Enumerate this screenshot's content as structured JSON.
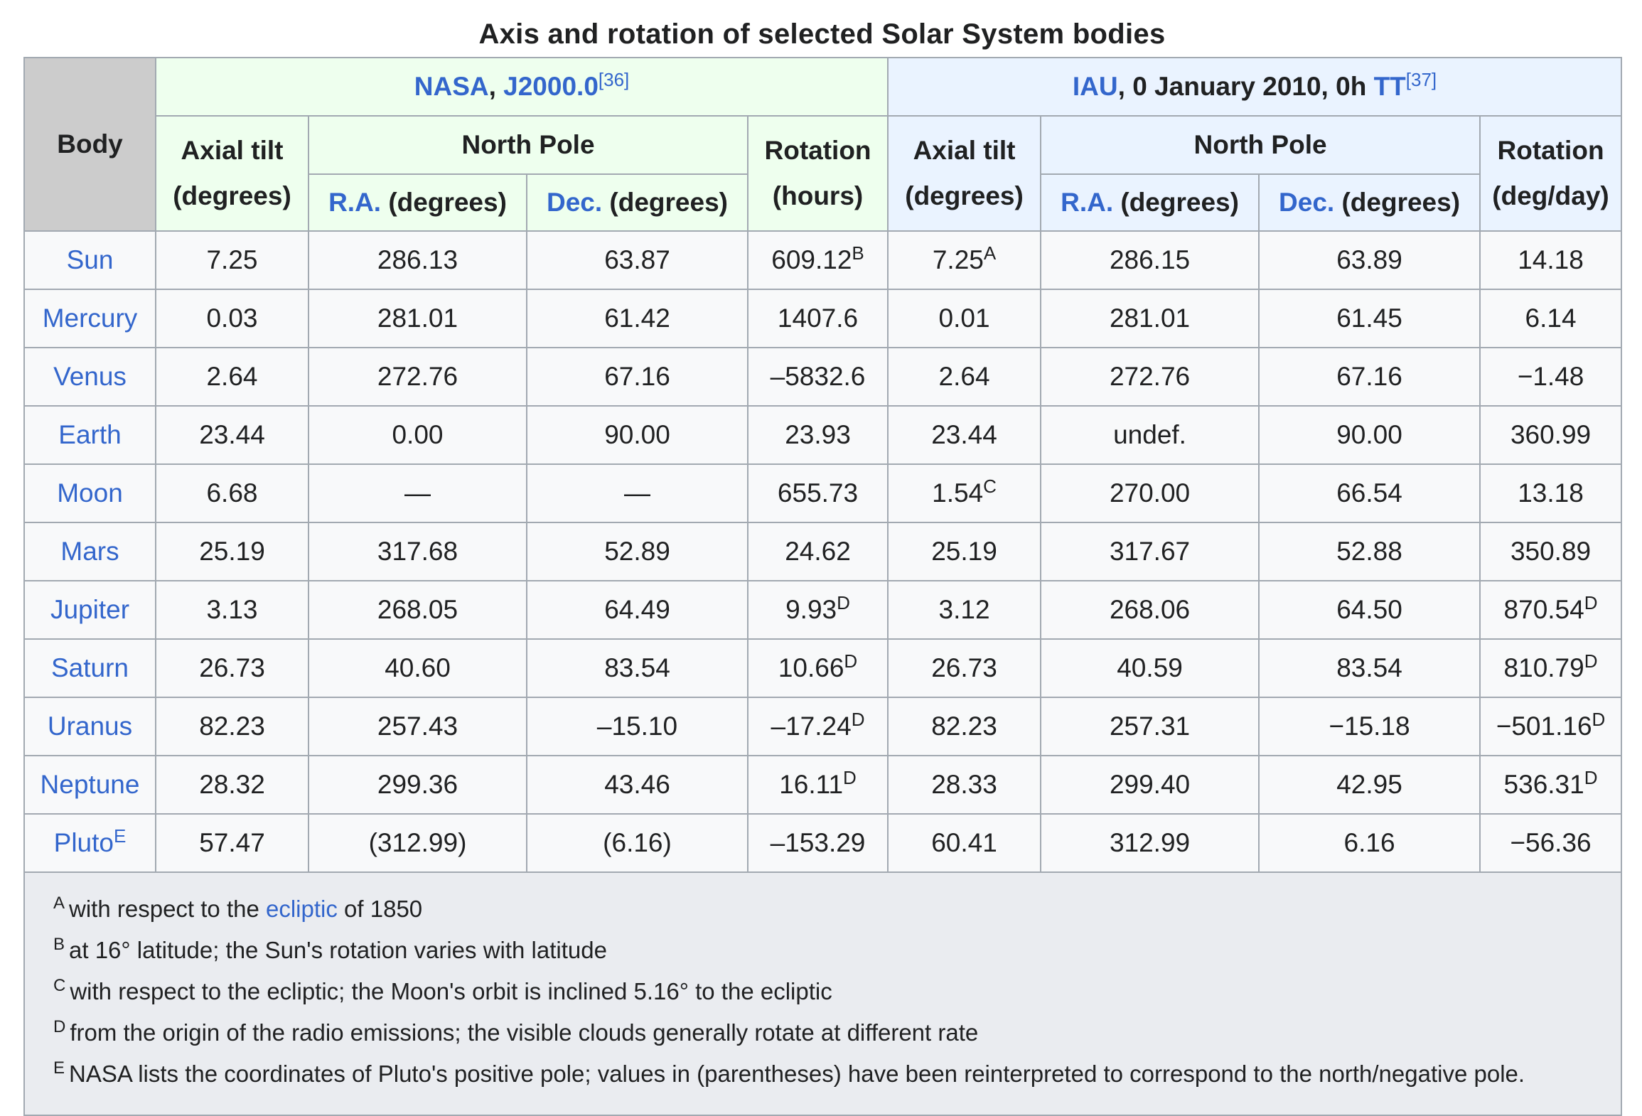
{
  "caption": "Axis and rotation of selected Solar System bodies",
  "header": {
    "body": "Body",
    "nasa_group": {
      "name": "NASA",
      "sep": ", ",
      "epoch": "J2000.0",
      "ref": "[36]"
    },
    "iau_group": {
      "name": "IAU",
      "text": ", 0 January 2010, 0h ",
      "tt": "TT",
      "ref": "[37]"
    },
    "axial_tilt": "Axial tilt",
    "degrees": "(degrees)",
    "north_pole": "North Pole",
    "ra": "R.A.",
    "dec": "Dec.",
    "deg_suffix": " (degrees)",
    "rotation": "Rotation",
    "hours": "(hours)",
    "degday": "(deg/day)"
  },
  "rows": [
    {
      "body": "Sun",
      "body_note": "",
      "nasa_tilt": "7.25",
      "nasa_ra": "286.13",
      "nasa_dec": "63.87",
      "nasa_rot": "609.12",
      "nasa_rot_note": "B",
      "iau_tilt": "7.25",
      "iau_tilt_note": "A",
      "iau_ra": "286.15",
      "iau_dec": "63.89",
      "iau_rot": "14.18",
      "iau_rot_note": ""
    },
    {
      "body": "Mercury",
      "body_note": "",
      "nasa_tilt": "0.03",
      "nasa_ra": "281.01",
      "nasa_dec": "61.42",
      "nasa_rot": "1407.6",
      "nasa_rot_note": "",
      "iau_tilt": "0.01",
      "iau_tilt_note": "",
      "iau_ra": "281.01",
      "iau_dec": "61.45",
      "iau_rot": "6.14",
      "iau_rot_note": ""
    },
    {
      "body": "Venus",
      "body_note": "",
      "nasa_tilt": "2.64",
      "nasa_ra": "272.76",
      "nasa_dec": "67.16",
      "nasa_rot": "–5832.6",
      "nasa_rot_note": "",
      "iau_tilt": "2.64",
      "iau_tilt_note": "",
      "iau_ra": "272.76",
      "iau_dec": "67.16",
      "iau_rot": "−1.48",
      "iau_rot_note": ""
    },
    {
      "body": "Earth",
      "body_note": "",
      "nasa_tilt": "23.44",
      "nasa_ra": "0.00",
      "nasa_dec": "90.00",
      "nasa_rot": "23.93",
      "nasa_rot_note": "",
      "iau_tilt": "23.44",
      "iau_tilt_note": "",
      "iau_ra": "undef.",
      "iau_dec": "90.00",
      "iau_rot": "360.99",
      "iau_rot_note": ""
    },
    {
      "body": "Moon",
      "body_note": "",
      "nasa_tilt": "6.68",
      "nasa_ra": "—",
      "nasa_dec": "—",
      "nasa_rot": "655.73",
      "nasa_rot_note": "",
      "iau_tilt": "1.54",
      "iau_tilt_note": "C",
      "iau_ra": "270.00",
      "iau_dec": "66.54",
      "iau_rot": "13.18",
      "iau_rot_note": ""
    },
    {
      "body": "Mars",
      "body_note": "",
      "nasa_tilt": "25.19",
      "nasa_ra": "317.68",
      "nasa_dec": "52.89",
      "nasa_rot": "24.62",
      "nasa_rot_note": "",
      "iau_tilt": "25.19",
      "iau_tilt_note": "",
      "iau_ra": "317.67",
      "iau_dec": "52.88",
      "iau_rot": "350.89",
      "iau_rot_note": ""
    },
    {
      "body": "Jupiter",
      "body_note": "",
      "nasa_tilt": "3.13",
      "nasa_ra": "268.05",
      "nasa_dec": "64.49",
      "nasa_rot": "9.93",
      "nasa_rot_note": "D",
      "iau_tilt": "3.12",
      "iau_tilt_note": "",
      "iau_ra": "268.06",
      "iau_dec": "64.50",
      "iau_rot": "870.54",
      "iau_rot_note": "D"
    },
    {
      "body": "Saturn",
      "body_note": "",
      "nasa_tilt": "26.73",
      "nasa_ra": "40.60",
      "nasa_dec": "83.54",
      "nasa_rot": "10.66",
      "nasa_rot_note": "D",
      "iau_tilt": "26.73",
      "iau_tilt_note": "",
      "iau_ra": "40.59",
      "iau_dec": "83.54",
      "iau_rot": "810.79",
      "iau_rot_note": "D"
    },
    {
      "body": "Uranus",
      "body_note": "",
      "nasa_tilt": "82.23",
      "nasa_ra": "257.43",
      "nasa_dec": "–15.10",
      "nasa_rot": "–17.24",
      "nasa_rot_note": "D",
      "iau_tilt": "82.23",
      "iau_tilt_note": "",
      "iau_ra": "257.31",
      "iau_dec": "−15.18",
      "iau_rot": "−501.16",
      "iau_rot_note": "D"
    },
    {
      "body": "Neptune",
      "body_note": "",
      "nasa_tilt": "28.32",
      "nasa_ra": "299.36",
      "nasa_dec": "43.46",
      "nasa_rot": "16.11",
      "nasa_rot_note": "D",
      "iau_tilt": "28.33",
      "iau_tilt_note": "",
      "iau_ra": "299.40",
      "iau_dec": "42.95",
      "iau_rot": "536.31",
      "iau_rot_note": "D"
    },
    {
      "body": "Pluto",
      "body_note": "E",
      "nasa_tilt": "57.47",
      "nasa_ra": "(312.99)",
      "nasa_dec": "(6.16)",
      "nasa_rot": "–153.29",
      "nasa_rot_note": "",
      "iau_tilt": "60.41",
      "iau_tilt_note": "",
      "iau_ra": "312.99",
      "iau_dec": "6.16",
      "iau_rot": "−56.36",
      "iau_rot_note": ""
    }
  ],
  "notes": [
    {
      "letter": "A",
      "pre": "with respect to the ",
      "link": "ecliptic",
      "post": " of 1850"
    },
    {
      "letter": "B",
      "pre": "at 16° latitude; the Sun's rotation varies with latitude",
      "link": "",
      "post": ""
    },
    {
      "letter": "C",
      "pre": "with respect to the ecliptic; the Moon's orbit is inclined 5.16° to the ecliptic",
      "link": "",
      "post": ""
    },
    {
      "letter": "D",
      "pre": "from the origin of the radio emissions; the visible clouds generally rotate at different rate",
      "link": "",
      "post": ""
    },
    {
      "letter": "E",
      "pre": "NASA lists the coordinates of Pluto's positive pole; values in (parentheses) have been reinterpreted to correspond to the north/negative pole.",
      "link": "",
      "post": ""
    }
  ],
  "colors": {
    "link": "#3366cc",
    "nasa_bg": "#eeffee",
    "iau_bg": "#eaf3ff",
    "body_header_bg": "#cccccc",
    "cell_bg": "#f8f9fa",
    "notes_bg": "#eaecf0",
    "border": "#a2a9b1"
  }
}
